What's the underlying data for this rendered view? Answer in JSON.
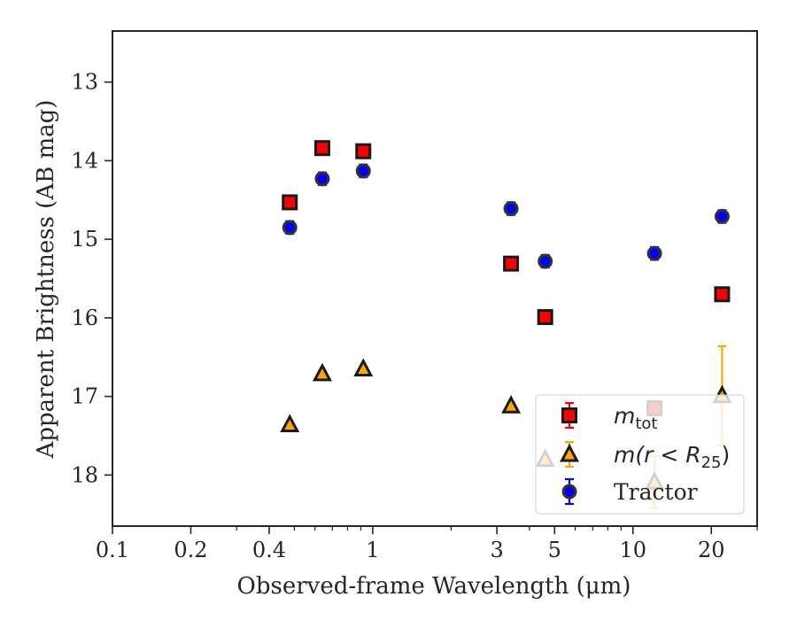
{
  "chart_data": {
    "type": "scatter",
    "xlabel": "Observed-frame Wavelength (μm)",
    "ylabel": "Apparent Brightness (AB mag)",
    "xscale": "log",
    "yaxis_inverted": true,
    "xlim": [
      0.1,
      30
    ],
    "ylim": [
      18.65,
      12.35
    ],
    "xticks": [
      {
        "value": 0.1,
        "label": "0.1"
      },
      {
        "value": 0.2,
        "label": "0.2"
      },
      {
        "value": 0.4,
        "label": "0.4"
      },
      {
        "value": 1,
        "label": "1"
      },
      {
        "value": 3,
        "label": "3"
      },
      {
        "value": 5,
        "label": "5"
      },
      {
        "value": 10,
        "label": "10"
      },
      {
        "value": 20,
        "label": "20"
      }
    ],
    "yticks": [
      {
        "value": 13,
        "label": "13"
      },
      {
        "value": 14,
        "label": "14"
      },
      {
        "value": 15,
        "label": "15"
      },
      {
        "value": 16,
        "label": "16"
      },
      {
        "value": 17,
        "label": "17"
      },
      {
        "value": 18,
        "label": "18"
      }
    ],
    "legend_position": "lower right",
    "series": [
      {
        "key": "mtot",
        "legend_main": "m",
        "legend_sub": "tot",
        "marker": "square",
        "fill": "#ff0000",
        "edge": "#1a1a1a",
        "errcolor": "#ff0000",
        "points": [
          {
            "x": 0.48,
            "y": 14.53,
            "err": 0.06
          },
          {
            "x": 0.64,
            "y": 13.84,
            "err": 0.06
          },
          {
            "x": 0.92,
            "y": 13.88,
            "err": 0.06
          },
          {
            "x": 3.4,
            "y": 15.31,
            "err": 0.05
          },
          {
            "x": 4.6,
            "y": 15.99,
            "err": 0.06
          },
          {
            "x": 12.1,
            "y": 17.15,
            "err": 0.06
          },
          {
            "x": 22.0,
            "y": 15.7,
            "err": 0.06
          }
        ]
      },
      {
        "key": "mr25",
        "legend_pre": "m(r < R",
        "legend_sub": "25",
        "legend_post": ")",
        "marker": "triangle",
        "fill": "#ffa500",
        "edge": "#1a1a1a",
        "errcolor": "#ffa500",
        "points": [
          {
            "x": 0.48,
            "y": 17.36,
            "err": 0.03
          },
          {
            "x": 0.64,
            "y": 16.71,
            "err": 0.03
          },
          {
            "x": 0.92,
            "y": 16.65,
            "err": 0.03
          },
          {
            "x": 3.4,
            "y": 17.12,
            "err": 0.04
          },
          {
            "x": 4.6,
            "y": 17.8,
            "err": 0.05
          },
          {
            "x": 12.1,
            "y": 18.09,
            "err": 0.33
          },
          {
            "x": 22.0,
            "y": 16.99,
            "err": 0.63
          }
        ]
      },
      {
        "key": "tractor",
        "legend_main": "Tractor",
        "marker": "circle",
        "fill": "#0000ff",
        "edge": "#333333",
        "errcolor": "#0000ff",
        "points": [
          {
            "x": 0.48,
            "y": 14.85,
            "err": 0.08
          },
          {
            "x": 0.64,
            "y": 14.23,
            "err": 0.08
          },
          {
            "x": 0.92,
            "y": 14.13,
            "err": 0.08
          },
          {
            "x": 3.4,
            "y": 14.61,
            "err": 0.08
          },
          {
            "x": 4.6,
            "y": 15.28,
            "err": 0.08
          },
          {
            "x": 12.1,
            "y": 15.18,
            "err": 0.08
          },
          {
            "x": 22.0,
            "y": 14.71,
            "err": 0.08
          }
        ]
      }
    ]
  }
}
